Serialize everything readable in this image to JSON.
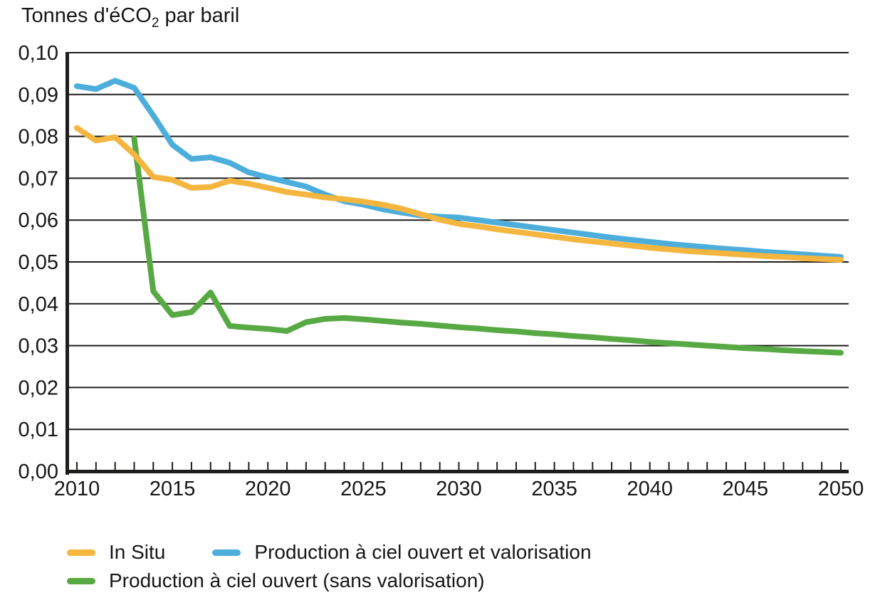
{
  "title": {
    "pre": "Tonnes d'éCO",
    "sub": "2",
    "post": " par baril"
  },
  "colors": {
    "axis": "#1d1d1b",
    "background": "#ffffff",
    "text": "#161616"
  },
  "legend": {
    "rows": [
      [
        "In Situ",
        "Production à ciel ouvert et valorisation"
      ],
      [
        "Production à ciel ouvert (sans valorisation)"
      ]
    ]
  },
  "chart_data": {
    "type": "line",
    "title": "Tonnes d'éCO2 par baril",
    "xlabel": "",
    "ylabel": "Tonnes d'éCO2 par baril",
    "ylim": [
      0.0,
      0.1
    ],
    "ytick_step": 0.01,
    "ytick_format": "comma-decimal-2",
    "grid": "horizontal",
    "legend_position": "bottom-left",
    "x": [
      2010,
      2011,
      2012,
      2013,
      2014,
      2015,
      2016,
      2017,
      2018,
      2019,
      2020,
      2021,
      2022,
      2023,
      2024,
      2025,
      2026,
      2027,
      2028,
      2029,
      2030,
      2031,
      2032,
      2033,
      2034,
      2035,
      2036,
      2037,
      2038,
      2039,
      2040,
      2041,
      2042,
      2043,
      2044,
      2045,
      2046,
      2047,
      2048,
      2049,
      2050
    ],
    "x_labels": [
      2010,
      2015,
      2020,
      2025,
      2030,
      2035,
      2040,
      2045,
      2050
    ],
    "series": [
      {
        "name": "In Situ",
        "color": "#F5B63F",
        "values": [
          0.082,
          0.079,
          0.0798,
          0.0757,
          0.0703,
          0.0696,
          0.0677,
          0.0679,
          0.0694,
          0.0687,
          0.0677,
          0.0667,
          0.0661,
          0.0654,
          0.065,
          0.0644,
          0.0637,
          0.0627,
          0.0614,
          0.0601,
          0.0591,
          0.0585,
          0.0578,
          0.0572,
          0.0566,
          0.056,
          0.0554,
          0.0549,
          0.0544,
          0.0539,
          0.0534,
          0.053,
          0.0526,
          0.0523,
          0.052,
          0.0517,
          0.0514,
          0.0512,
          0.0509,
          0.0507,
          0.0505
        ]
      },
      {
        "name": "Production à ciel ouvert et valorisation",
        "color": "#4EAEDB",
        "values": [
          0.092,
          0.0913,
          0.0933,
          0.0916,
          0.085,
          0.078,
          0.0746,
          0.075,
          0.0737,
          0.0714,
          0.0702,
          0.0691,
          0.068,
          0.0661,
          0.0645,
          0.0637,
          0.0626,
          0.0618,
          0.0611,
          0.0608,
          0.0606,
          0.06,
          0.0594,
          0.0588,
          0.0582,
          0.0576,
          0.057,
          0.0564,
          0.0558,
          0.0553,
          0.0548,
          0.0543,
          0.0539,
          0.0535,
          0.0531,
          0.0528,
          0.0524,
          0.0521,
          0.0518,
          0.0515,
          0.0512
        ]
      },
      {
        "name": "Production à ciel ouvert (sans valorisation)",
        "color": "#57A944",
        "values": [
          null,
          null,
          null,
          0.0795,
          0.043,
          0.0373,
          0.038,
          0.0427,
          0.0347,
          0.0343,
          0.034,
          0.0335,
          0.0356,
          0.0364,
          0.0366,
          0.0363,
          0.0359,
          0.0355,
          0.0352,
          0.0348,
          0.0344,
          0.0341,
          0.0337,
          0.0334,
          0.033,
          0.0327,
          0.0323,
          0.032,
          0.0316,
          0.0313,
          0.0309,
          0.0306,
          0.0303,
          0.03,
          0.0297,
          0.0294,
          0.0292,
          0.0289,
          0.0287,
          0.0285,
          0.0283
        ]
      }
    ]
  }
}
